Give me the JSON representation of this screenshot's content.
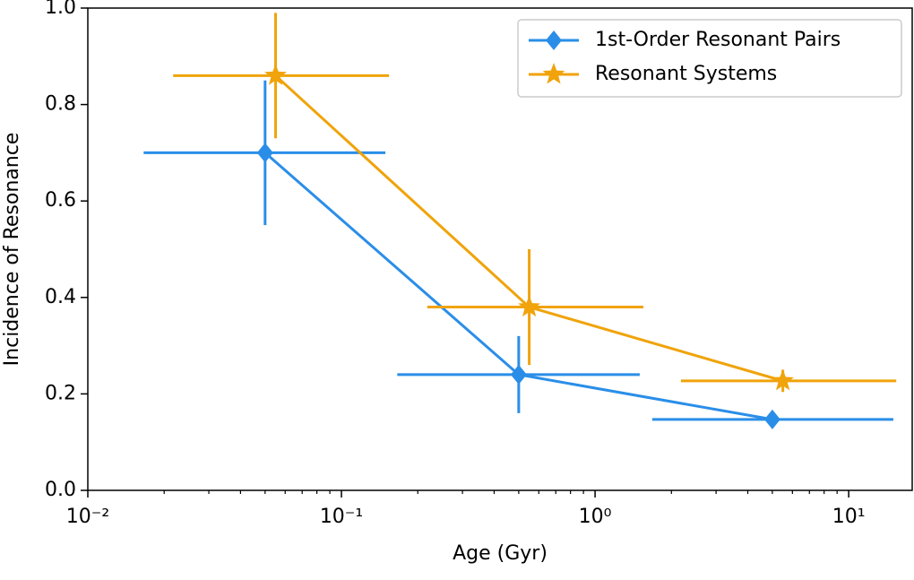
{
  "chart_data": {
    "type": "errorbar",
    "xlabel": "Age (Gyr)",
    "ylabel": "Incidence of Resonance",
    "xscale": "log",
    "xlim": [
      0.01,
      17.8
    ],
    "ylim": [
      0,
      1
    ],
    "xticks": [
      {
        "value": 0.01,
        "label": "10⁻²"
      },
      {
        "value": 0.1,
        "label": "10⁻¹"
      },
      {
        "value": 1,
        "label": "10⁰"
      },
      {
        "value": 10,
        "label": "10¹"
      }
    ],
    "yticks": [
      {
        "value": 0,
        "label": "0.0"
      },
      0.2,
      0.4,
      0.6,
      0.8,
      {
        "value": 1,
        "label": "1.0"
      }
    ],
    "legend": "upper right",
    "series": [
      {
        "name": "1st-Order Resonant Pairs",
        "color": "#2a8ee8",
        "marker": "diamond",
        "x": [
          0.05,
          0.5,
          5.0
        ],
        "values": [
          0.7,
          0.24,
          0.147
        ],
        "x_low": [
          0.0166,
          0.166,
          1.68
        ],
        "x_high": [
          0.149,
          1.5,
          15.0
        ],
        "yerr": [
          0.15,
          0.08,
          0.01
        ]
      },
      {
        "name": "Resonant Systems",
        "color": "#f0a30a",
        "marker": "star",
        "x": [
          0.055,
          0.55,
          5.5
        ],
        "values": [
          0.86,
          0.38,
          0.227
        ],
        "x_low": [
          0.0217,
          0.218,
          2.18
        ],
        "x_high": [
          0.154,
          1.55,
          15.4
        ],
        "yerr": [
          0.13,
          0.12,
          0.023
        ]
      }
    ]
  }
}
